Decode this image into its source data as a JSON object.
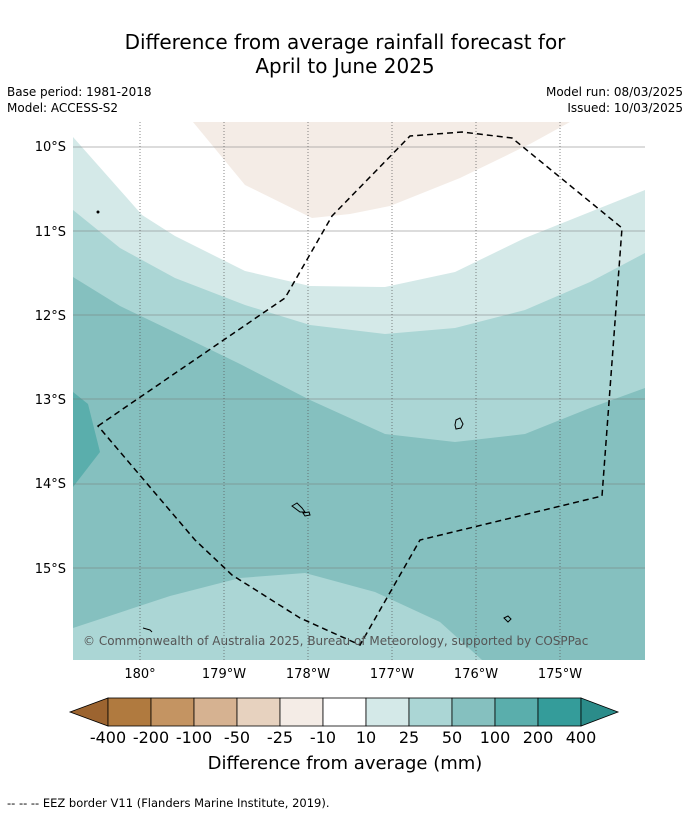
{
  "header": {
    "title_line1": "Difference from average rainfall forecast for",
    "title_line2": "April to June 2025",
    "base_period": "Base period: 1981-2018",
    "model": "Model: ACCESS-S2",
    "model_run": "Model run: 08/03/2025",
    "issued": "Issued: 10/03/2025"
  },
  "map": {
    "lat_labels": [
      "10°S",
      "11°S",
      "12°S",
      "13°S",
      "14°S",
      "15°S"
    ],
    "lon_labels": [
      "180°",
      "179°W",
      "178°W",
      "177°W",
      "176°W",
      "175°W"
    ],
    "copyright": "© Commonwealth of Australia 2025, Bureau of Meteorology, supported by COSPPac"
  },
  "colorbar": {
    "title": "Difference from average (mm)",
    "labels": [
      "-400",
      "-200",
      "-100",
      "-50",
      "-25",
      "-10",
      "10",
      "25",
      "50",
      "100",
      "200",
      "400"
    ],
    "colors": [
      "#9c6430",
      "#b07a3f",
      "#c49462",
      "#d6b291",
      "#e7d2bf",
      "#f4ece6",
      "#ffffff",
      "#d4e9e8",
      "#abd6d5",
      "#85c0bf",
      "#5aaeac",
      "#349c9a",
      "#2b8c8a"
    ]
  },
  "footer": {
    "legend": "-- -- -- EEZ border V11 (Flanders Marine Institute, 2019)."
  }
}
